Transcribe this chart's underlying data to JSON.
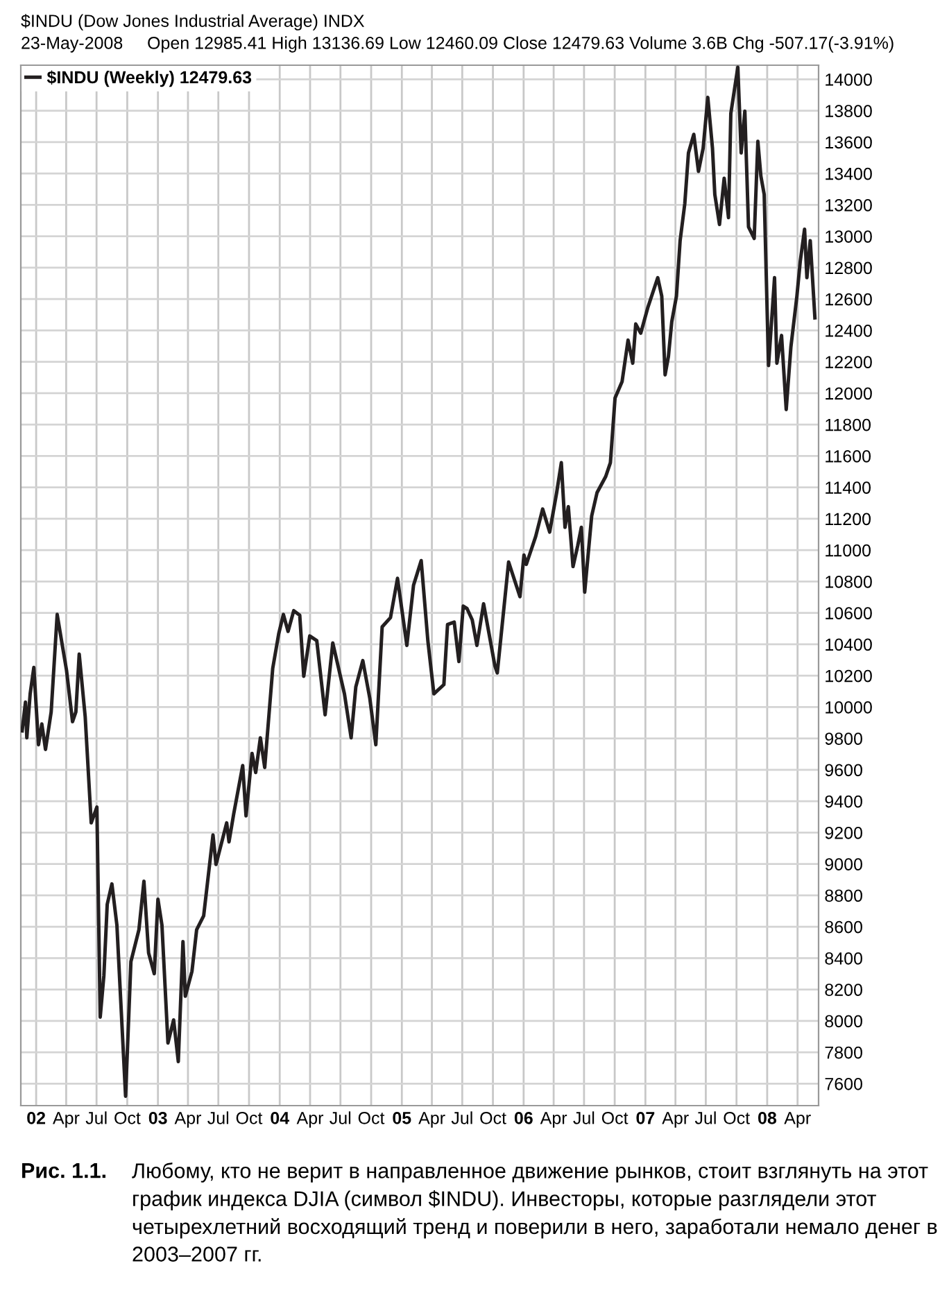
{
  "chart_data": {
    "type": "line",
    "title": "$INDU (Dow Jones Industrial Average) INDX",
    "subtitle": "23-May-2008     Open 12985.41 High 13136.69 Low 12460.09 Close 12479.63 Volume 3.6B Chg -507.17(-3.91%)",
    "x": [
      "2001-11-20",
      "2001-11-30",
      "2001-12-04",
      "2001-12-14",
      "2001-12-25",
      "2002-01-08",
      "2002-01-18",
      "2002-01-29",
      "2002-02-15",
      "2002-03-05",
      "2002-03-19",
      "2002-04-02",
      "2002-04-20",
      "2002-04-30",
      "2002-05-10",
      "2002-05-28",
      "2002-06-15",
      "2002-07-02",
      "2002-07-12",
      "2002-07-23",
      "2002-08-02",
      "2002-08-16",
      "2002-08-31",
      "2002-09-26",
      "2002-10-12",
      "2002-11-05",
      "2002-11-20",
      "2002-12-04",
      "2002-12-21",
      "2003-01-01",
      "2003-01-13",
      "2003-01-31",
      "2003-02-17",
      "2003-03-03",
      "2003-03-17",
      "2003-03-24",
      "2003-04-13",
      "2003-04-27",
      "2003-05-18",
      "2003-06-15",
      "2003-06-24",
      "2003-07-26",
      "2003-08-02",
      "2003-08-16",
      "2003-09-12",
      "2003-09-22",
      "2003-10-10",
      "2003-10-21",
      "2003-11-04",
      "2003-11-17",
      "2003-12-11",
      "2003-12-29",
      "2004-01-12",
      "2004-01-26",
      "2004-02-12",
      "2004-03-01",
      "2004-03-13",
      "2004-03-31",
      "2004-04-21",
      "2004-05-16",
      "2004-06-08",
      "2004-07-13",
      "2004-08-02",
      "2004-08-16",
      "2004-09-06",
      "2004-09-27",
      "2004-10-15",
      "2004-11-03",
      "2004-11-28",
      "2004-12-19",
      "2005-01-16",
      "2005-02-05",
      "2005-02-28",
      "2005-03-20",
      "2005-04-07",
      "2005-05-07",
      "2005-05-18",
      "2005-06-07",
      "2005-06-21",
      "2005-07-04",
      "2005-07-15",
      "2005-07-31",
      "2005-08-14",
      "2005-09-03",
      "2005-10-07",
      "2005-10-14",
      "2005-11-17",
      "2005-12-21",
      "2006-01-02",
      "2006-01-09",
      "2006-02-06",
      "2006-02-27",
      "2006-03-20",
      "2006-04-10",
      "2006-04-24",
      "2006-05-05",
      "2006-05-15",
      "2006-05-29",
      "2006-06-12",
      "2006-06-23",
      "2006-07-03",
      "2006-07-24",
      "2006-08-09",
      "2006-09-04",
      "2006-09-18",
      "2006-10-02",
      "2006-10-23",
      "2006-11-10",
      "2006-11-24",
      "2006-12-03",
      "2006-12-18",
      "2007-01-08",
      "2007-02-07",
      "2007-02-19",
      "2007-03-01",
      "2007-03-11",
      "2007-03-21",
      "2007-04-04",
      "2007-04-15",
      "2007-04-29",
      "2007-05-10",
      "2007-05-26",
      "2007-06-09",
      "2007-06-23",
      "2007-07-07",
      "2007-07-21",
      "2007-07-28",
      "2007-08-11",
      "2007-08-25",
      "2007-09-07",
      "2007-09-14",
      "2007-10-05",
      "2007-10-15",
      "2007-10-26",
      "2007-11-06",
      "2007-11-23",
      "2007-12-04",
      "2007-12-13",
      "2007-12-23",
      "2008-01-05",
      "2008-01-23",
      "2008-01-30",
      "2008-02-13",
      "2008-02-27",
      "2008-03-12",
      "2008-03-30",
      "2008-04-09",
      "2008-04-22",
      "2008-04-29",
      "2008-05-09",
      "2008-05-23"
    ],
    "series": [
      {
        "name": "$INDU (Weekly) 12479.63",
        "color": "#231f20",
        "values": [
          9848,
          10031,
          9804,
          10084,
          10252,
          9760,
          9892,
          9730,
          9969,
          10590,
          10411,
          10234,
          9907,
          9969,
          10337,
          9937,
          9262,
          9362,
          8024,
          8290,
          8743,
          8873,
          8610,
          7520,
          8378,
          8581,
          8890,
          8433,
          8301,
          8775,
          8610,
          7859,
          8006,
          7741,
          8505,
          8157,
          8316,
          8581,
          8669,
          9185,
          8997,
          9262,
          9141,
          9318,
          9627,
          9306,
          9704,
          9583,
          9804,
          9615,
          10246,
          10467,
          10590,
          10482,
          10614,
          10585,
          10196,
          10453,
          10423,
          9951,
          10408,
          10084,
          9804,
          10128,
          10296,
          10055,
          9760,
          10511,
          10570,
          10820,
          10393,
          10776,
          10933,
          10422,
          10084,
          10143,
          10526,
          10541,
          10290,
          10643,
          10629,
          10555,
          10393,
          10658,
          10261,
          10217,
          10924,
          10703,
          10968,
          10909,
          11086,
          11262,
          11115,
          11366,
          11557,
          11145,
          11277,
          10895,
          11027,
          11145,
          10732,
          11218,
          11366,
          11469,
          11557,
          11970,
          12073,
          12338,
          12191,
          12441,
          12382,
          12544,
          12736,
          12618,
          12117,
          12235,
          12456,
          12618,
          12972,
          13207,
          13531,
          13649,
          13414,
          13561,
          13885,
          13561,
          13266,
          13075,
          13370,
          13119,
          13782,
          14077,
          13531,
          13797,
          13060,
          12986,
          13605,
          13384,
          13266,
          12176,
          12736,
          12191,
          12368,
          11896,
          12294,
          12618,
          12839,
          13045,
          12736,
          12972,
          12480
        ]
      }
    ],
    "xlim": [
      "2001-11-16",
      "2008-06-03"
    ],
    "xticks": [
      {
        "value": "2002-01-01",
        "label": "02"
      },
      {
        "value": "2002-04-01",
        "label": "Apr"
      },
      {
        "value": "2002-07-01",
        "label": "Jul"
      },
      {
        "value": "2002-10-01",
        "label": "Oct"
      },
      {
        "value": "2003-01-01",
        "label": "03"
      },
      {
        "value": "2003-04-01",
        "label": "Apr"
      },
      {
        "value": "2003-07-01",
        "label": "Jul"
      },
      {
        "value": "2003-10-01",
        "label": "Oct"
      },
      {
        "value": "2004-01-01",
        "label": "04"
      },
      {
        "value": "2004-04-01",
        "label": "Apr"
      },
      {
        "value": "2004-07-01",
        "label": "Jul"
      },
      {
        "value": "2004-10-01",
        "label": "Oct"
      },
      {
        "value": "2005-01-01",
        "label": "05"
      },
      {
        "value": "2005-04-01",
        "label": "Apr"
      },
      {
        "value": "2005-07-01",
        "label": "Jul"
      },
      {
        "value": "2005-10-01",
        "label": "Oct"
      },
      {
        "value": "2006-01-01",
        "label": "06"
      },
      {
        "value": "2006-04-01",
        "label": "Apr"
      },
      {
        "value": "2006-07-01",
        "label": "Jul"
      },
      {
        "value": "2006-10-01",
        "label": "Oct"
      },
      {
        "value": "2007-01-01",
        "label": "07"
      },
      {
        "value": "2007-04-01",
        "label": "Apr"
      },
      {
        "value": "2007-07-01",
        "label": "Jul"
      },
      {
        "value": "2007-10-01",
        "label": "Oct"
      },
      {
        "value": "2008-01-01",
        "label": "08"
      },
      {
        "value": "2008-04-01",
        "label": "Apr"
      }
    ],
    "ylim": [
      7460,
      14090
    ],
    "yticks": [
      7600,
      7800,
      8000,
      8200,
      8400,
      8600,
      8800,
      9000,
      9200,
      9400,
      9600,
      9800,
      10000,
      10200,
      10400,
      10600,
      10800,
      11000,
      11200,
      11400,
      11600,
      11800,
      12000,
      12200,
      12400,
      12600,
      12800,
      13000,
      13200,
      13400,
      13600,
      13800,
      14000
    ],
    "grid": true,
    "legend": "top left",
    "marker": "none",
    "line_style": "solid",
    "annotations": [
      "Рис. 1.1.",
      "Любому, кто не верит в направленное движение рынков, стоит взглянуть на этот график индекса DJIA (символ $INDU). Инвесторы, которые разглядели этот четырехлетний восходящий тренд и поверили в него, заработали немало денег в 2003–2007 гг."
    ]
  }
}
